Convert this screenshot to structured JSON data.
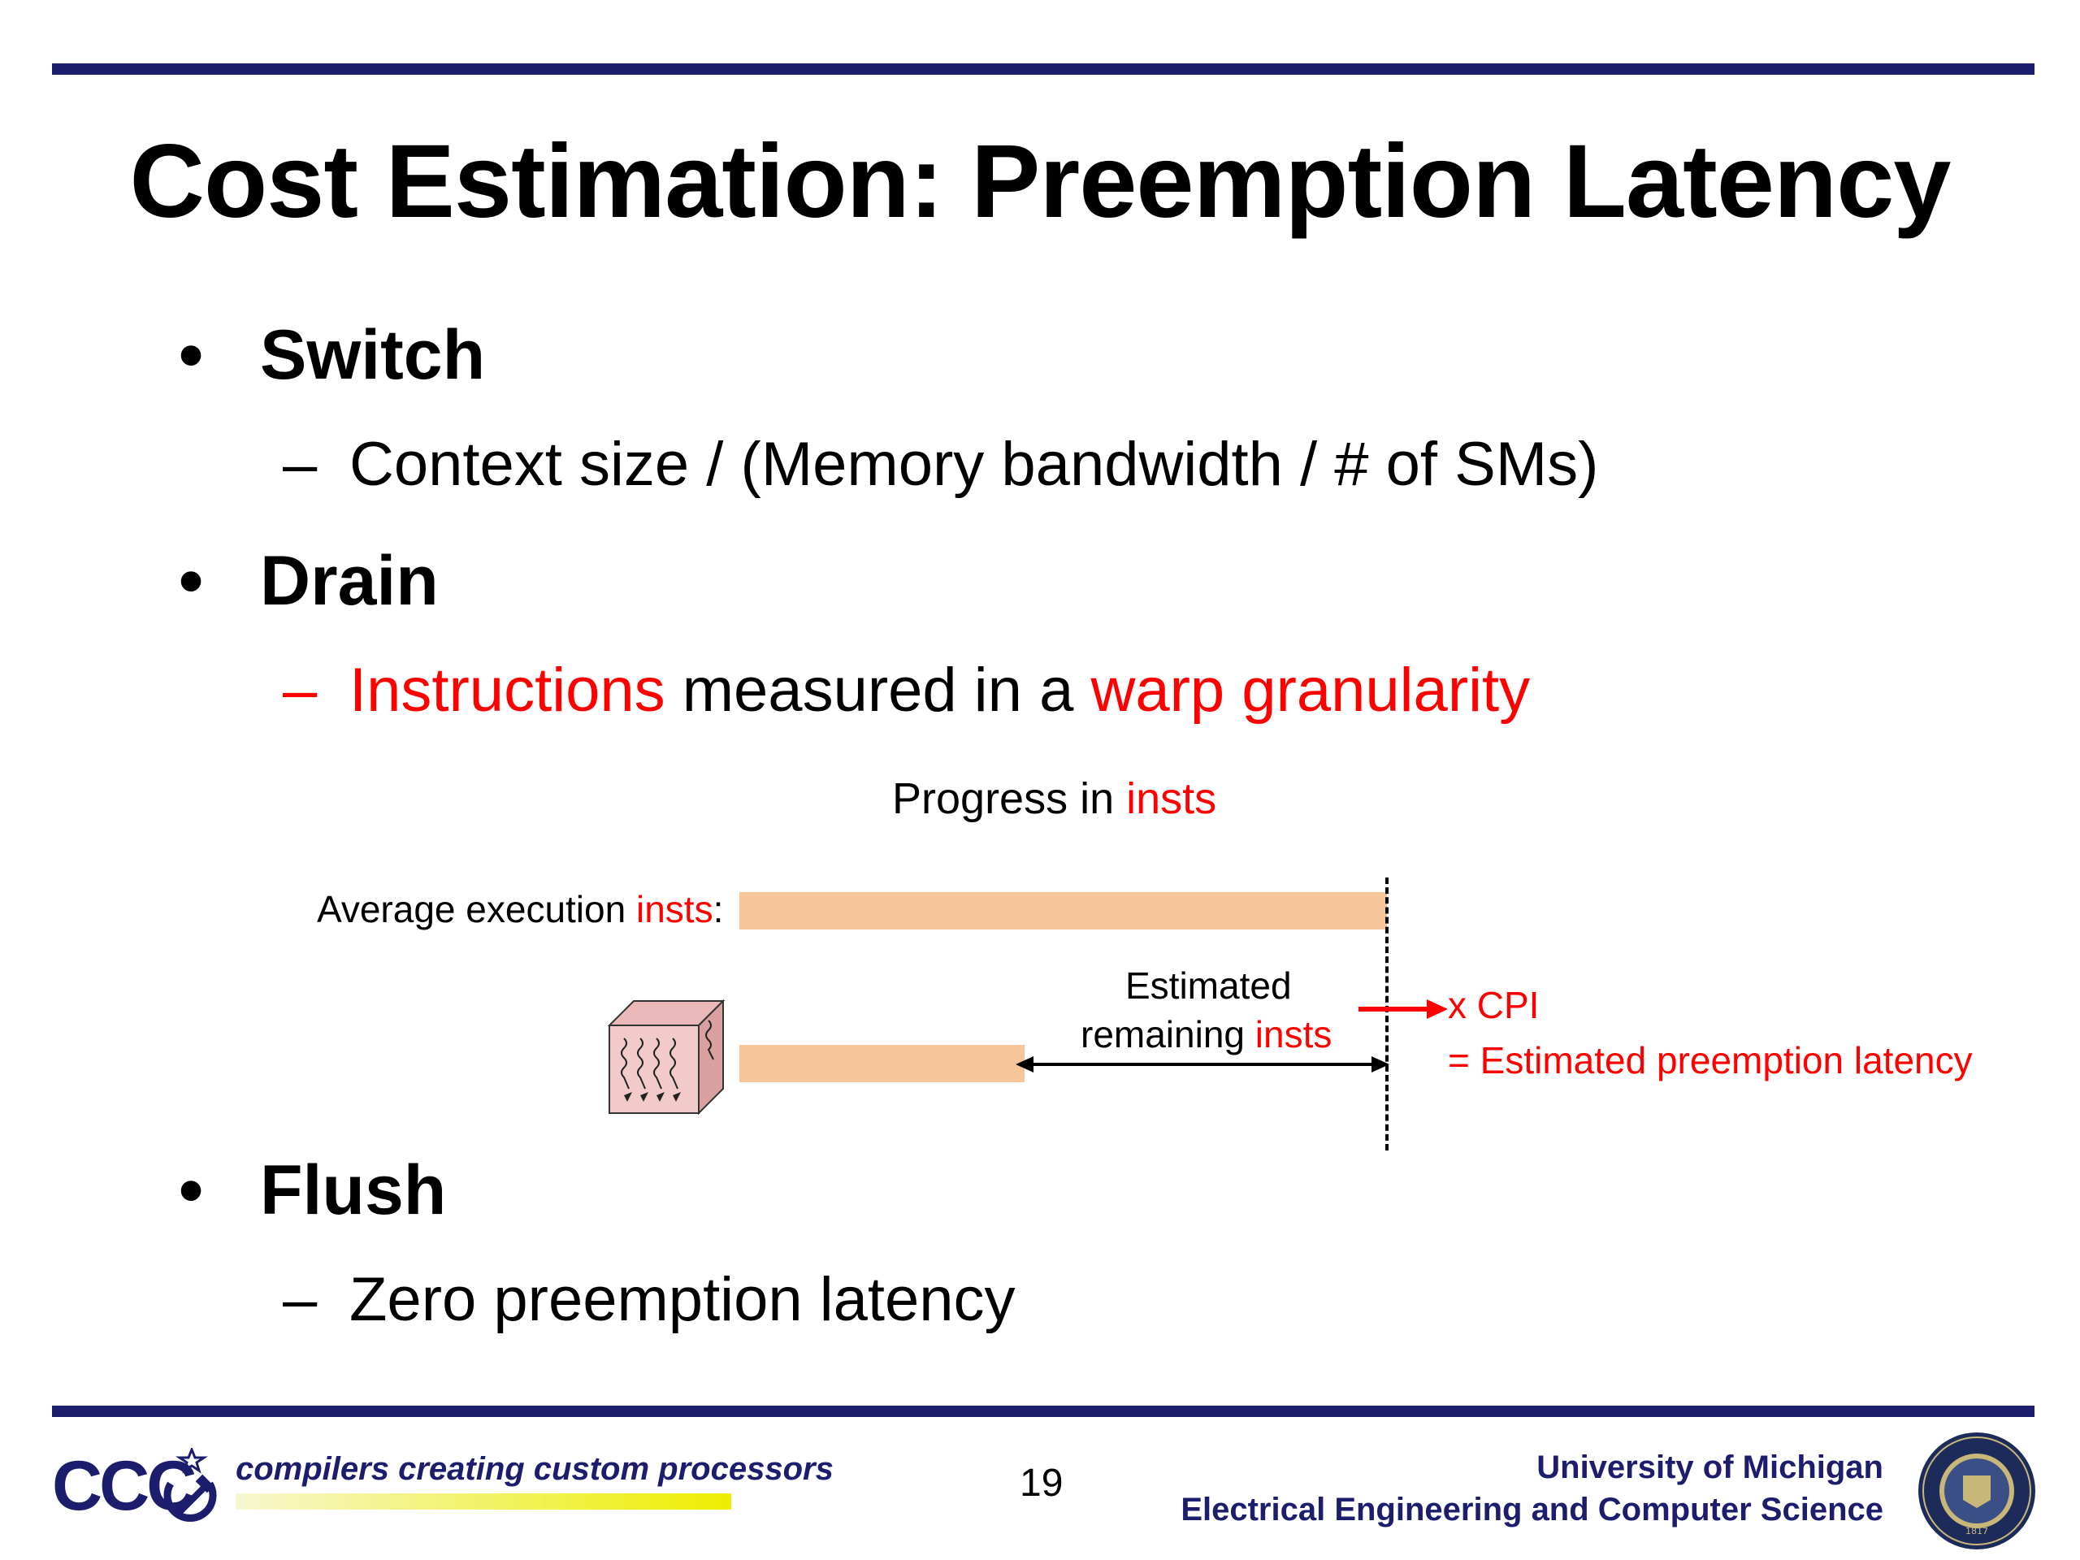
{
  "slide": {
    "title": "Cost Estimation: Preemption Latency",
    "bullets": [
      {
        "label": "Switch",
        "sub": "Context size / (Memory bandwidth / # of SMs)"
      },
      {
        "label": "Drain",
        "sub_parts": [
          "Instructions",
          " measured in a ",
          "warp granularity"
        ]
      },
      {
        "label": "Flush",
        "sub": "Zero preemption latency"
      }
    ]
  },
  "diagram": {
    "heading_parts": [
      "Progress in ",
      "insts"
    ],
    "avg_label_parts": [
      "Average execution ",
      "insts",
      ":"
    ],
    "estimated_line1": "Estimated",
    "estimated_line2_parts": [
      "remaining ",
      "insts"
    ],
    "cpi_label": "x CPI",
    "result_label": "= Estimated preemption latency",
    "avg_bar_fraction": 1.0,
    "progress_bar_fraction": 0.44,
    "bar_color": "#f7c59a",
    "accent_color": "#ff0000"
  },
  "footer": {
    "logo_text": "CCC",
    "tagline": "compilers creating custom processors",
    "page_number": "19",
    "university": "University of Michigan",
    "department": "Electrical Engineering and Computer Science",
    "seal_text": "THE UNIVERSITY OF MICHIGAN",
    "seal_year": "1817",
    "rule_color": "#1d1d6e"
  }
}
